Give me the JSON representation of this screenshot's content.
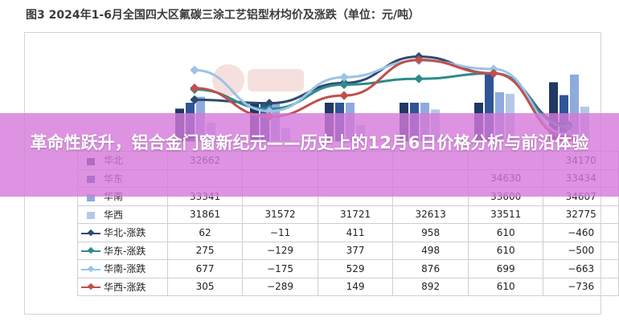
{
  "title": "图3  2024年1-6月全国四大区氟碳三涂工艺铝型材均价及涨跌（单位：元/吨）",
  "overlay_headline": "革命性跃升，铝合金门窗新纪元——历史上的12月6日价格分析与前沿体验",
  "colors": {
    "bar_north": "#1f3864",
    "bar_east": "#2f5597",
    "bar_south": "#8faadc",
    "bar_west": "#b4c7e7",
    "line_north": "#2e4a6f",
    "line_east": "#2e8b8b",
    "line_south": "#9dc3e6",
    "line_west": "#c0504d",
    "overlay": "#d478da"
  },
  "chart_data": {
    "type": "bar",
    "title": "图3  2024年1-6月全国四大区氟碳三涂工艺铝型材均价及涨跌（单位：元/吨）",
    "note": "combo chart: clustered bars for prices, lines for changes (secondary axis); categories/months hidden behind overlay band",
    "bar_series": [
      {
        "name": "华北",
        "values": [
          32662,
          null,
          null,
          null,
          null,
          34170
        ]
      },
      {
        "name": "华东",
        "values": [
          null,
          null,
          null,
          null,
          34630,
          33434
        ]
      },
      {
        "name": "华南",
        "values": [
          33341,
          null,
          null,
          null,
          33600,
          34607
        ]
      },
      {
        "name": "华西",
        "values": [
          31861,
          31572,
          31721,
          32613,
          33511,
          32775
        ]
      }
    ],
    "line_series": [
      {
        "name": "华北-涨跌",
        "values": [
          62,
          -11,
          411,
          958,
          610,
          -460
        ]
      },
      {
        "name": "华东-涨跌",
        "values": [
          275,
          -129,
          377,
          498,
          610,
          -500
        ]
      },
      {
        "name": "华南-涨跌",
        "values": [
          677,
          -175,
          529,
          876,
          699,
          -663
        ]
      },
      {
        "name": "华西-涨跌",
        "values": [
          305,
          -289,
          149,
          892,
          610,
          -736
        ]
      }
    ],
    "table": {
      "rows": [
        {
          "label": "华北",
          "cells": [
            "32662",
            "",
            "",
            "",
            "",
            "34170"
          ]
        },
        {
          "label": "华东",
          "cells": [
            "",
            "",
            "",
            "",
            "34630",
            "33434"
          ]
        },
        {
          "label": "华南",
          "cells": [
            "33341",
            "",
            "",
            "",
            "33600",
            "34607"
          ]
        },
        {
          "label": "华西",
          "cells": [
            "31861",
            "31572",
            "31721",
            "32613",
            "33511",
            "32775"
          ]
        },
        {
          "label": "华北-涨跌",
          "cells": [
            "62",
            "−11",
            "411",
            "958",
            "610",
            "−460"
          ]
        },
        {
          "label": "华东-涨跌",
          "cells": [
            "275",
            "−129",
            "377",
            "498",
            "610",
            "−500"
          ]
        },
        {
          "label": "华南-涨跌",
          "cells": [
            "677",
            "−175",
            "529",
            "876",
            "699",
            "−663"
          ]
        },
        {
          "label": "华西-涨跌",
          "cells": [
            "305",
            "−289",
            "149",
            "892",
            "610",
            "−736"
          ]
        }
      ]
    }
  }
}
